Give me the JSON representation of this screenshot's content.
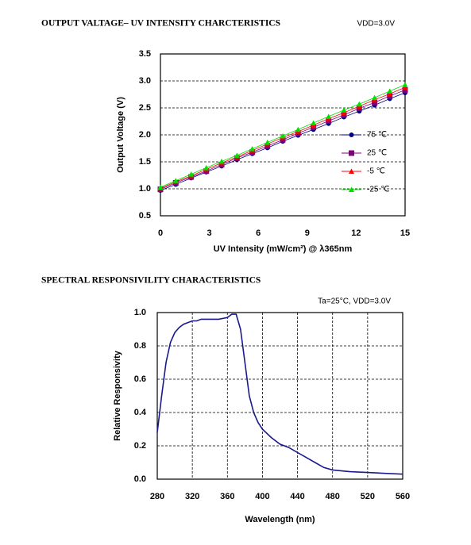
{
  "chart_data": [
    {
      "type": "line",
      "title": "OUTPUT VALTAGE– UV INTENSITY CHARCTERISTICS",
      "annotation": "VDD=3.0V",
      "x_label": "UV Intensity (mW/cm²) @ λ365nm",
      "y_label": "Output Voltage (V)",
      "x": [
        0,
        0.94,
        1.88,
        2.81,
        3.75,
        4.69,
        5.63,
        6.56,
        7.5,
        8.44,
        9.38,
        10.31,
        11.25,
        12.19,
        13.13,
        14.06,
        15
      ],
      "series": [
        {
          "name": "75 ℃",
          "color": "#000080",
          "marker": "circle",
          "values": [
            0.97,
            1.08,
            1.2,
            1.31,
            1.42,
            1.54,
            1.65,
            1.76,
            1.88,
            1.99,
            2.1,
            2.21,
            2.33,
            2.44,
            2.55,
            2.67,
            2.78
          ]
        },
        {
          "name": "25 ℃",
          "color": "#800080",
          "marker": "square",
          "values": [
            0.99,
            1.11,
            1.22,
            1.33,
            1.45,
            1.57,
            1.68,
            1.79,
            1.91,
            2.03,
            2.14,
            2.26,
            2.37,
            2.49,
            2.6,
            2.72,
            2.83
          ]
        },
        {
          "name": "-5 ℃",
          "color": "#ff0000",
          "marker": "triangle",
          "values": [
            1.01,
            1.13,
            1.24,
            1.36,
            1.48,
            1.59,
            1.71,
            1.83,
            1.95,
            2.06,
            2.18,
            2.3,
            2.41,
            2.53,
            2.65,
            2.76,
            2.88
          ]
        },
        {
          "name": "-25 ℃",
          "color": "#00e000",
          "marker": "triangle",
          "values": [
            1.03,
            1.15,
            1.27,
            1.39,
            1.51,
            1.62,
            1.74,
            1.86,
            1.98,
            2.1,
            2.22,
            2.34,
            2.46,
            2.57,
            2.69,
            2.81,
            2.93
          ]
        }
      ],
      "xlim": [
        0,
        15
      ],
      "xticks": [
        0,
        3,
        6,
        9,
        12,
        15
      ],
      "ylim": [
        0.5,
        3.5
      ],
      "yticks": [
        0.5,
        {
          "value": 1,
          "label": "1.0"
        },
        1.5,
        {
          "value": 2,
          "label": "2.0"
        },
        2.5,
        {
          "value": 3,
          "label": "3.0"
        },
        3.5
      ],
      "grid": "y",
      "legend": "right"
    },
    {
      "type": "line",
      "title": "SPECTRAL RESPONSIVILITY CHARACTERISTICS",
      "annotation": "Ta=25°C, VDD=3.0V",
      "x_label": "Wavelength (nm)",
      "y_label": "Relative Responsivity",
      "x": [
        280,
        285,
        290,
        295,
        300,
        305,
        310,
        315,
        320,
        325,
        330,
        340,
        350,
        360,
        365,
        370,
        375,
        380,
        385,
        390,
        395,
        400,
        410,
        420,
        430,
        440,
        450,
        460,
        470,
        480,
        500,
        520,
        540,
        560
      ],
      "series": [
        {
          "color": "#1a1a8c",
          "values": [
            0.28,
            0.5,
            0.7,
            0.82,
            0.88,
            0.91,
            0.93,
            0.94,
            0.95,
            0.95,
            0.96,
            0.96,
            0.96,
            0.97,
            0.99,
            0.99,
            0.9,
            0.7,
            0.5,
            0.4,
            0.34,
            0.3,
            0.25,
            0.21,
            0.19,
            0.16,
            0.13,
            0.1,
            0.07,
            0.055,
            0.045,
            0.04,
            0.035,
            0.03
          ]
        }
      ],
      "xlim": [
        280,
        560
      ],
      "xticks": [
        280,
        320,
        360,
        400,
        440,
        480,
        520,
        560
      ],
      "ylim": [
        0,
        1
      ],
      "yticks": [
        {
          "value": 0,
          "label": "0.0"
        },
        0.2,
        0.4,
        0.6,
        0.8,
        {
          "value": 1,
          "label": "1.0"
        }
      ],
      "grid": "both"
    }
  ]
}
